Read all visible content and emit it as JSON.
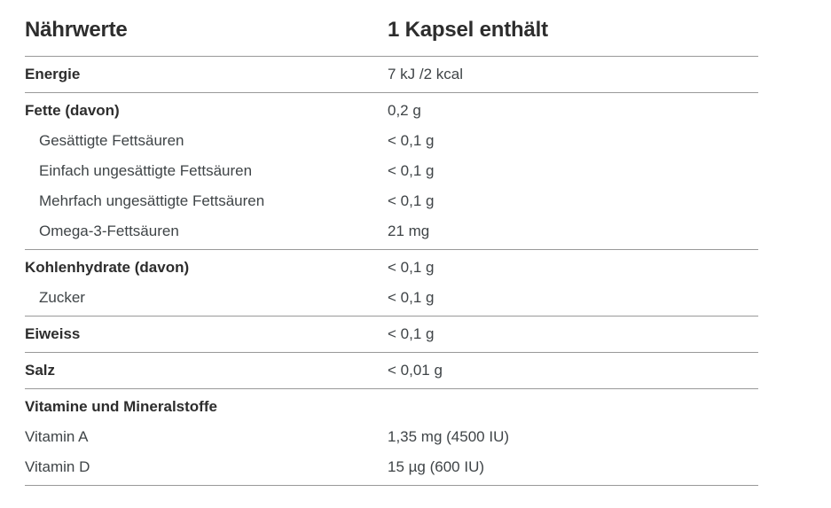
{
  "table": {
    "header": {
      "col1": "Nährwerte",
      "col2": "1 Kapsel enthält"
    },
    "sections": [
      {
        "rows": [
          {
            "label": "Energie",
            "value": "7 kJ /2 kcal",
            "style": "bold"
          }
        ]
      },
      {
        "rows": [
          {
            "label": "Fette (davon)",
            "value": "0,2 g",
            "style": "bold"
          },
          {
            "label": "Gesättigte Fettsäuren",
            "value": "< 0,1 g",
            "style": "sub"
          },
          {
            "label": "Einfach ungesättigte Fettsäuren",
            "value": "< 0,1 g",
            "style": "sub"
          },
          {
            "label": "Mehrfach ungesättigte Fettsäuren",
            "value": "< 0,1 g",
            "style": "sub"
          },
          {
            "label": "Omega-3-Fettsäuren",
            "value": "21 mg",
            "style": "sub"
          }
        ]
      },
      {
        "rows": [
          {
            "label": "Kohlenhydrate (davon)",
            "value": "< 0,1 g",
            "style": "bold"
          },
          {
            "label": "Zucker",
            "value": "< 0,1 g",
            "style": "sub"
          }
        ]
      },
      {
        "rows": [
          {
            "label": "Eiweiss",
            "value": "< 0,1 g",
            "style": "bold"
          }
        ]
      },
      {
        "rows": [
          {
            "label": "Salz",
            "value": "< 0,01 g",
            "style": "bold"
          }
        ]
      },
      {
        "rows": [
          {
            "label": "Vitamine und Mineralstoffe",
            "value": "",
            "style": "bold"
          },
          {
            "label": "Vitamin A",
            "value": "1,35 mg (4500 IU)",
            "style": "plain"
          },
          {
            "label": "Vitamin D",
            "value": "15 µg (600 IU)",
            "style": "plain"
          }
        ]
      }
    ],
    "colors": {
      "heading_text": "#2d2d2d",
      "body_text": "#3f4447",
      "divider": "#999999",
      "background": "#ffffff"
    }
  }
}
